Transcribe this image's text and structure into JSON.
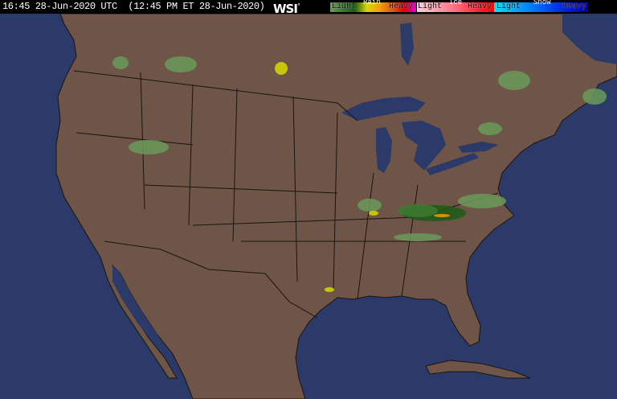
{
  "header": {
    "timestamp": "16:45 28-Jun-2020 UTC  (12:45 PM ET 28-Jun-2020)",
    "logo": "WSI",
    "logo_mark": "°"
  },
  "legend": {
    "rain": {
      "title": "Rain",
      "light": "Light",
      "heavy": "Heavy",
      "colors": [
        "#6a9a5a",
        "#3c7a30",
        "#1f5a18",
        "#d8d800",
        "#f0a000",
        "#d86020",
        "#e00000",
        "#e000e0"
      ]
    },
    "ice": {
      "title": "Ice",
      "light": "Light",
      "heavy": "Heavy",
      "colors": [
        "#ffd0d8",
        "#ffa0b0",
        "#ff7080",
        "#ff3040",
        "#ff0000"
      ]
    },
    "snow": {
      "title": "Snow",
      "light": "Light",
      "heavy": "Heavy",
      "colors": [
        "#00e0ff",
        "#00a0ff",
        "#0060ff",
        "#0020e0",
        "#0000a0"
      ]
    }
  },
  "map": {
    "land_color": "#6e5548",
    "water_color": "#2b3a68",
    "border_color": "#1a1410"
  }
}
